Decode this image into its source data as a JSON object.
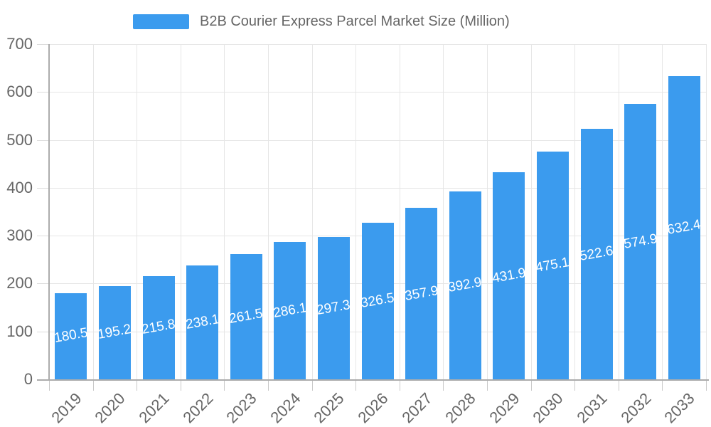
{
  "legend": {
    "label": "B2B Courier Express Parcel Market Size (Million)",
    "swatch_color": "#3b9bee"
  },
  "chart_data": {
    "type": "bar",
    "title": "B2B Courier Express Parcel Market Size (Million)",
    "series_name": "B2B Courier Express Parcel Market Size (Million)",
    "categories": [
      "2019",
      "2020",
      "2021",
      "2022",
      "2023",
      "2024",
      "2025",
      "2026",
      "2027",
      "2028",
      "2029",
      "2030",
      "2031",
      "2032",
      "2033"
    ],
    "values": [
      180.5,
      195.2,
      215.8,
      238.1,
      261.5,
      286.1,
      297.3,
      326.5,
      357.9,
      392.9,
      431.9,
      475.1,
      522.6,
      574.9,
      632.4
    ],
    "value_labels": [
      "180.5",
      "195.2",
      "215.8",
      "238.1",
      "261.5",
      "286.1",
      "297.3",
      "326.5",
      "357.9",
      "392.9",
      "431.9",
      "475.1",
      "522.6",
      "574.9",
      "632.4"
    ],
    "xlabel": "",
    "ylabel": "",
    "ylim": [
      0,
      700
    ],
    "y_ticks": [
      0,
      100,
      200,
      300,
      400,
      500,
      600,
      700
    ],
    "grid": true,
    "legend_position": "top",
    "bar_color": "#3b9bee",
    "value_label_color": "#ffffff",
    "axis_label_color": "#666666",
    "gridline_color": "#e6e6e6",
    "axis_line_color": "#acacac"
  }
}
